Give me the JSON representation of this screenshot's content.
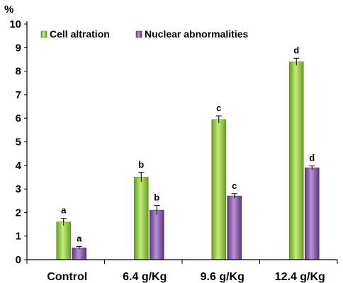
{
  "chart_data": {
    "type": "bar",
    "ylabel": "%",
    "ylim": [
      0,
      10
    ],
    "yticks": [
      0,
      1,
      2,
      3,
      4,
      5,
      6,
      7,
      8,
      9,
      10
    ],
    "grid": false,
    "legend_position": "top-left",
    "categories": [
      "Control",
      "6.4 g/Kg",
      "9.6 g/Kg",
      "12.4 g/Kg"
    ],
    "series": [
      {
        "name": "Cell altration",
        "color": "#8fc63b",
        "values": [
          1.6,
          3.5,
          5.95,
          8.4
        ],
        "errors": [
          0.15,
          0.2,
          0.15,
          0.15
        ],
        "labels": [
          "a",
          "b",
          "c",
          "d"
        ]
      },
      {
        "name": "Nuclear abnormalities",
        "color": "#8a5ab0",
        "values": [
          0.5,
          2.1,
          2.7,
          3.9
        ],
        "errors": [
          0.06,
          0.2,
          0.1,
          0.08
        ],
        "labels": [
          "a",
          "b",
          "c",
          "d"
        ]
      }
    ]
  }
}
